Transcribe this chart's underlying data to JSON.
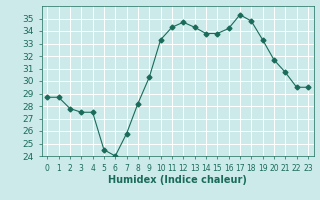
{
  "x": [
    0,
    1,
    2,
    3,
    4,
    5,
    6,
    7,
    8,
    9,
    10,
    11,
    12,
    13,
    14,
    15,
    16,
    17,
    18,
    19,
    20,
    21,
    22,
    23
  ],
  "y": [
    28.7,
    28.7,
    27.8,
    27.5,
    27.5,
    24.5,
    24.0,
    25.8,
    28.2,
    30.3,
    33.3,
    34.3,
    34.7,
    34.3,
    33.8,
    33.8,
    34.2,
    35.3,
    34.8,
    33.3,
    31.7,
    30.7,
    29.5,
    29.5
  ],
  "xlabel": "Humidex (Indice chaleur)",
  "ylim": [
    24,
    36
  ],
  "xlim_min": -0.5,
  "xlim_max": 23.5,
  "yticks": [
    24,
    25,
    26,
    27,
    28,
    29,
    30,
    31,
    32,
    33,
    34,
    35
  ],
  "xtick_labels": [
    "0",
    "1",
    "2",
    "3",
    "4",
    "5",
    "6",
    "7",
    "8",
    "9",
    "10",
    "11",
    "12",
    "13",
    "14",
    "15",
    "16",
    "17",
    "18",
    "19",
    "20",
    "21",
    "22",
    "23"
  ],
  "line_color": "#1a6b5a",
  "marker": "D",
  "marker_size": 2.5,
  "bg_color": "#cceaea",
  "grid_color": "#b0d8d8",
  "label_color": "#1a6b5a",
  "xlabel_fontsize": 7,
  "ytick_fontsize": 6.5,
  "xtick_fontsize": 5.5
}
